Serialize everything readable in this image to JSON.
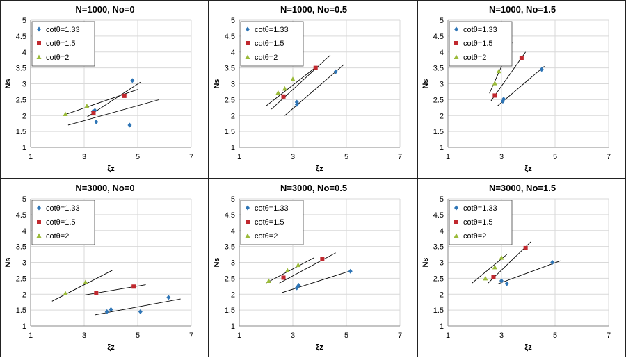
{
  "colors": {
    "cot133": "#2E75B6",
    "cot15": "#C0282E",
    "cot2": "#9BBB3A",
    "grid": "#D9D9D9",
    "axis": "#888888",
    "trend": "#000000"
  },
  "chart_data": [
    {
      "type": "scatter",
      "title": "N=1000, No=0",
      "xlabel": "ξz",
      "ylabel": "Ns",
      "xlim": [
        1,
        7
      ],
      "ylim": [
        1,
        5
      ],
      "xticks": [
        "1",
        "3",
        "5",
        "7"
      ],
      "yticks": [
        "1",
        "1.5",
        "2",
        "2.5",
        "3",
        "3.5",
        "4",
        "4.5",
        "5"
      ],
      "legend_position": "top-left",
      "series": [
        {
          "name": "cotθ=1.33",
          "marker": "diamond",
          "points": [
            [
              3.33,
              2.13
            ],
            [
              3.4,
              2.16
            ],
            [
              3.45,
              1.8
            ],
            [
              4.7,
              1.7
            ],
            [
              4.8,
              3.1
            ]
          ],
          "trend": [
            [
              2.4,
              1.7
            ],
            [
              5.8,
              2.5
            ]
          ]
        },
        {
          "name": "cotθ=1.5",
          "marker": "square",
          "points": [
            [
              3.35,
              2.08
            ],
            [
              4.5,
              2.62
            ]
          ],
          "trend": [
            [
              3.1,
              1.95
            ],
            [
              5.1,
              3.05
            ]
          ]
        },
        {
          "name": "cotθ=2",
          "marker": "triangle",
          "points": [
            [
              2.3,
              2.05
            ],
            [
              3.1,
              2.3
            ]
          ],
          "trend": [
            [
              2.25,
              2.02
            ],
            [
              5.0,
              2.82
            ]
          ]
        }
      ]
    },
    {
      "type": "scatter",
      "title": "N=1000, No=0.5",
      "xlabel": "ξz",
      "ylabel": "Ns",
      "xlim": [
        1,
        7
      ],
      "ylim": [
        1,
        5
      ],
      "xticks": [
        "1",
        "3",
        "5",
        "7"
      ],
      "yticks": [
        "1",
        "1.5",
        "2",
        "2.5",
        "3",
        "3.5",
        "4",
        "4.5",
        "5"
      ],
      "legend_position": "top-left",
      "series": [
        {
          "name": "cotθ=1.33",
          "marker": "diamond",
          "points": [
            [
              3.15,
              2.35
            ],
            [
              3.15,
              2.42
            ],
            [
              4.6,
              3.38
            ]
          ],
          "trend": [
            [
              2.7,
              2.0
            ],
            [
              4.9,
              3.6
            ]
          ]
        },
        {
          "name": "cotθ=1.5",
          "marker": "square",
          "points": [
            [
              2.65,
              2.6
            ],
            [
              3.85,
              3.5
            ]
          ],
          "trend": [
            [
              2.2,
              2.2
            ],
            [
              4.4,
              3.9
            ]
          ]
        },
        {
          "name": "cotθ=2",
          "marker": "triangle",
          "points": [
            [
              2.45,
              2.72
            ],
            [
              2.7,
              2.85
            ],
            [
              3.0,
              3.15
            ]
          ],
          "trend": [
            [
              2.0,
              2.3
            ],
            [
              3.9,
              3.55
            ]
          ]
        }
      ]
    },
    {
      "type": "scatter",
      "title": "N=1000, No=1.5",
      "xlabel": "ξz",
      "ylabel": "Ns",
      "xlim": [
        1,
        7
      ],
      "ylim": [
        1,
        5
      ],
      "xticks": [
        "1",
        "3",
        "5",
        "7"
      ],
      "yticks": [
        "1",
        "1.5",
        "2",
        "2.5",
        "3",
        "3.5",
        "4",
        "4.5",
        "5"
      ],
      "legend_position": "top-left",
      "series": [
        {
          "name": "cotθ=1.33",
          "marker": "diamond",
          "points": [
            [
              3.05,
              2.45
            ],
            [
              3.08,
              2.52
            ],
            [
              4.5,
              3.45
            ]
          ],
          "trend": [
            [
              2.85,
              2.3
            ],
            [
              4.6,
              3.55
            ]
          ]
        },
        {
          "name": "cotθ=1.5",
          "marker": "square",
          "points": [
            [
              2.75,
              2.63
            ],
            [
              3.75,
              3.8
            ]
          ],
          "trend": [
            [
              2.6,
              2.45
            ],
            [
              3.9,
              4.0
            ]
          ]
        },
        {
          "name": "cotθ=2",
          "marker": "triangle",
          "points": [
            [
              2.75,
              3.02
            ],
            [
              2.9,
              3.4
            ]
          ],
          "trend": [
            [
              2.55,
              2.7
            ],
            [
              3.4,
              4.3
            ]
          ]
        }
      ]
    },
    {
      "type": "scatter",
      "title": "N=3000, No=0",
      "xlabel": "ξz",
      "ylabel": "Ns",
      "xlim": [
        1,
        7
      ],
      "ylim": [
        1,
        5
      ],
      "xticks": [
        "1",
        "3",
        "5",
        "7"
      ],
      "yticks": [
        "1",
        "1.5",
        "2",
        "2.5",
        "3",
        "3.5",
        "4",
        "4.5",
        "5"
      ],
      "legend_position": "top-left",
      "series": [
        {
          "name": "cotθ=1.33",
          "marker": "diamond",
          "points": [
            [
              3.85,
              1.45
            ],
            [
              4.0,
              1.52
            ],
            [
              5.1,
              1.45
            ],
            [
              6.15,
              1.9
            ]
          ],
          "trend": [
            [
              3.4,
              1.35
            ],
            [
              6.6,
              1.85
            ]
          ]
        },
        {
          "name": "cotθ=1.5",
          "marker": "square",
          "points": [
            [
              3.45,
              2.04
            ],
            [
              4.85,
              2.24
            ]
          ],
          "trend": [
            [
              3.0,
              1.97
            ],
            [
              5.3,
              2.3
            ]
          ]
        },
        {
          "name": "cotθ=2",
          "marker": "triangle",
          "points": [
            [
              2.3,
              2.03
            ],
            [
              3.05,
              2.38
            ]
          ],
          "trend": [
            [
              1.8,
              1.78
            ],
            [
              4.05,
              2.75
            ]
          ]
        }
      ]
    },
    {
      "type": "scatter",
      "title": "N=3000, No=0.5",
      "xlabel": "ξz",
      "ylabel": "Ns",
      "xlim": [
        1,
        7
      ],
      "ylim": [
        1,
        5
      ],
      "xticks": [
        "1",
        "3",
        "5",
        "7"
      ],
      "yticks": [
        "1",
        "1.5",
        "2",
        "2.5",
        "3",
        "3.5",
        "4",
        "4.5",
        "5"
      ],
      "legend_position": "top-left",
      "series": [
        {
          "name": "cotθ=1.33",
          "marker": "diamond",
          "points": [
            [
              3.15,
              2.2
            ],
            [
              3.22,
              2.28
            ],
            [
              5.15,
              2.72
            ]
          ],
          "trend": [
            [
              2.6,
              2.05
            ],
            [
              5.1,
              2.72
            ]
          ]
        },
        {
          "name": "cotθ=1.5",
          "marker": "square",
          "points": [
            [
              2.65,
              2.52
            ],
            [
              4.1,
              3.12
            ]
          ],
          "trend": [
            [
              2.5,
              2.35
            ],
            [
              4.6,
              3.3
            ]
          ]
        },
        {
          "name": "cotθ=2",
          "marker": "triangle",
          "points": [
            [
              2.1,
              2.42
            ],
            [
              2.8,
              2.75
            ],
            [
              3.2,
              2.92
            ]
          ],
          "trend": [
            [
              2.0,
              2.35
            ],
            [
              3.8,
              3.15
            ]
          ]
        }
      ]
    },
    {
      "type": "scatter",
      "title": "N=3000, No=1.5",
      "xlabel": "ξz",
      "ylabel": "Ns",
      "xlim": [
        1,
        7
      ],
      "ylim": [
        1,
        5
      ],
      "xticks": [
        "1",
        "3",
        "5",
        "7"
      ],
      "yticks": [
        "1",
        "1.5",
        "2",
        "2.5",
        "3",
        "3.5",
        "4",
        "4.5",
        "5"
      ],
      "legend_position": "top-left",
      "series": [
        {
          "name": "cotθ=1.33",
          "marker": "diamond",
          "points": [
            [
              3.0,
              2.42
            ],
            [
              3.2,
              2.33
            ],
            [
              4.9,
              3.0
            ]
          ],
          "trend": [
            [
              2.85,
              2.32
            ],
            [
              5.2,
              3.05
            ]
          ]
        },
        {
          "name": "cotθ=1.5",
          "marker": "square",
          "points": [
            [
              2.7,
              2.55
            ],
            [
              3.9,
              3.45
            ]
          ],
          "trend": [
            [
              2.5,
              2.35
            ],
            [
              4.1,
              3.65
            ]
          ]
        },
        {
          "name": "cotθ=2",
          "marker": "triangle",
          "points": [
            [
              2.4,
              2.5
            ],
            [
              2.75,
              2.85
            ],
            [
              3.0,
              3.15
            ]
          ],
          "trend": [
            [
              1.9,
              2.35
            ],
            [
              3.2,
              3.25
            ]
          ]
        }
      ]
    }
  ]
}
